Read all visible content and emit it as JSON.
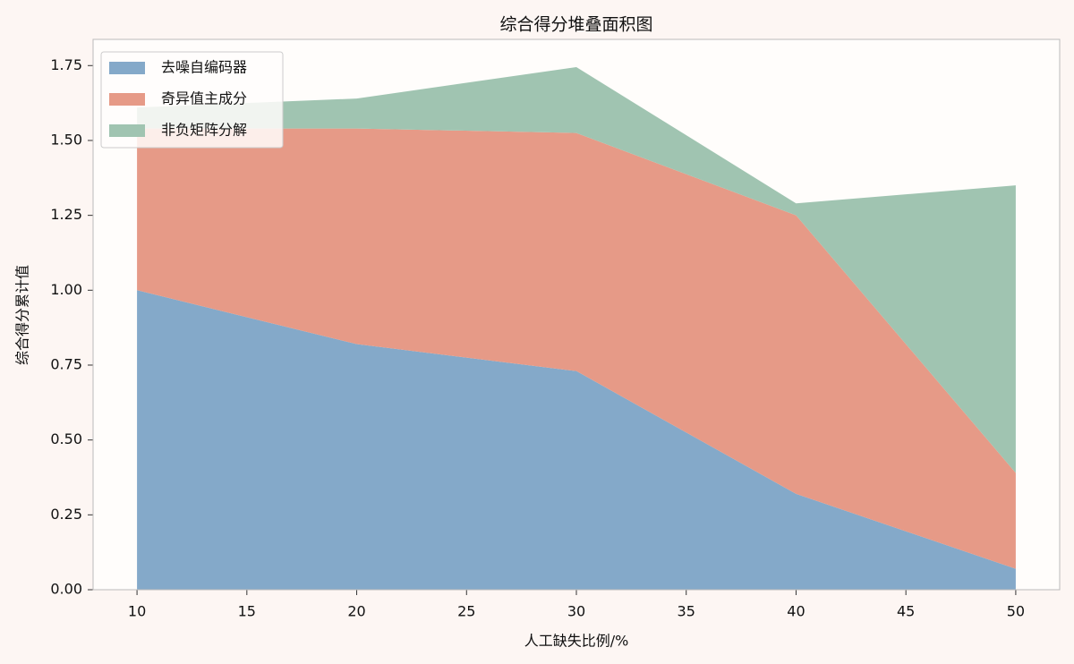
{
  "chart_data": {
    "type": "stacked-area",
    "title": "综合得分堆叠面积图",
    "x_label": "人工缺失比例/%",
    "y_label": "综合得分累计值",
    "x": [
      10,
      20,
      30,
      40,
      50
    ],
    "series": [
      {
        "name": "去噪自编码器",
        "color": "#84a9c9",
        "values": [
          1.0,
          0.82,
          0.73,
          0.32,
          0.07
        ]
      },
      {
        "name": "奇异值主成分",
        "color": "#e69a87",
        "values": [
          0.54,
          0.72,
          0.795,
          0.93,
          0.32
        ]
      },
      {
        "name": "非负矩阵分解",
        "color": "#a0c4b1",
        "values": [
          0.07,
          0.1,
          0.22,
          0.04,
          0.96
        ]
      }
    ],
    "xlim": [
      8,
      52
    ],
    "xticks": [
      10,
      15,
      20,
      25,
      30,
      35,
      40,
      45,
      50
    ],
    "ylim": [
      0,
      1.8375
    ],
    "yticks": [
      {
        "value": 0,
        "label": "0.00"
      },
      {
        "value": 0.25,
        "label": "0.25"
      },
      {
        "value": 0.5,
        "label": "0.50"
      },
      {
        "value": 0.75,
        "label": "0.75"
      },
      {
        "value": 1,
        "label": "1.00"
      },
      {
        "value": 1.25,
        "label": "1.25"
      },
      {
        "value": 1.5,
        "label": "1.50"
      },
      {
        "value": 1.75,
        "label": "1.75"
      }
    ],
    "legend": "upper-left"
  }
}
